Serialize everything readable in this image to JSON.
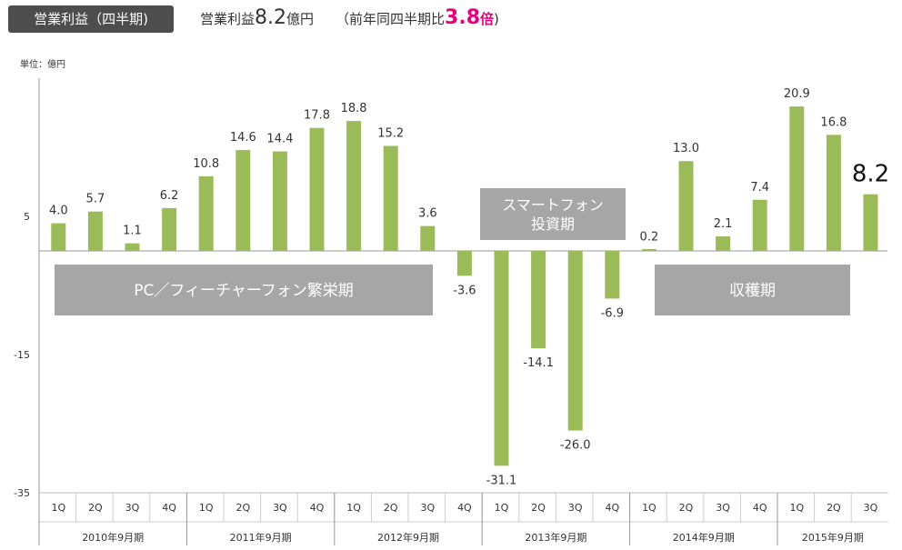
{
  "header": {
    "badge": "営業利益（四半期)",
    "summary_prefix": "営業利益",
    "summary_value": "8.2",
    "summary_unit": "億円",
    "compare_prefix": "（前年同四半期比",
    "compare_value": "3.8",
    "compare_unit": "倍",
    "compare_suffix": ")"
  },
  "unit_label": "単位：億円",
  "colors": {
    "bar": "#9bbb59",
    "phase_box": "#a6a6a6",
    "accent": "#e6007e",
    "badge": "#4d4d4d"
  },
  "phases": [
    {
      "label": "PC／フィーチャーフォン繁栄期"
    },
    {
      "label": "スマートフォン\n投資期"
    },
    {
      "label": "収穫期"
    }
  ],
  "chart_data": {
    "type": "bar",
    "ylim": [
      -35,
      25
    ],
    "yticks": [
      5,
      -15,
      -35
    ],
    "highlight_last": true,
    "categories": [
      "1Q",
      "2Q",
      "3Q",
      "4Q",
      "1Q",
      "2Q",
      "3Q",
      "4Q",
      "1Q",
      "2Q",
      "3Q",
      "4Q",
      "1Q",
      "2Q",
      "3Q",
      "4Q",
      "1Q",
      "2Q",
      "3Q",
      "4Q",
      "1Q",
      "2Q",
      "3Q"
    ],
    "values": [
      4.0,
      5.7,
      1.1,
      6.2,
      10.8,
      14.6,
      14.4,
      17.8,
      18.8,
      15.2,
      3.6,
      -3.6,
      -31.1,
      -14.1,
      -26.0,
      -6.9,
      0.2,
      13.0,
      2.1,
      7.4,
      20.9,
      16.8,
      8.2
    ],
    "groups": [
      {
        "label": "2010年9月期",
        "count": 4
      },
      {
        "label": "2011年9月期",
        "count": 4
      },
      {
        "label": "2012年9月期",
        "count": 4
      },
      {
        "label": "2013年9月期",
        "count": 4
      },
      {
        "label": "2014年9月期",
        "count": 4
      },
      {
        "label": "2015年9月期",
        "count": 3
      }
    ]
  }
}
